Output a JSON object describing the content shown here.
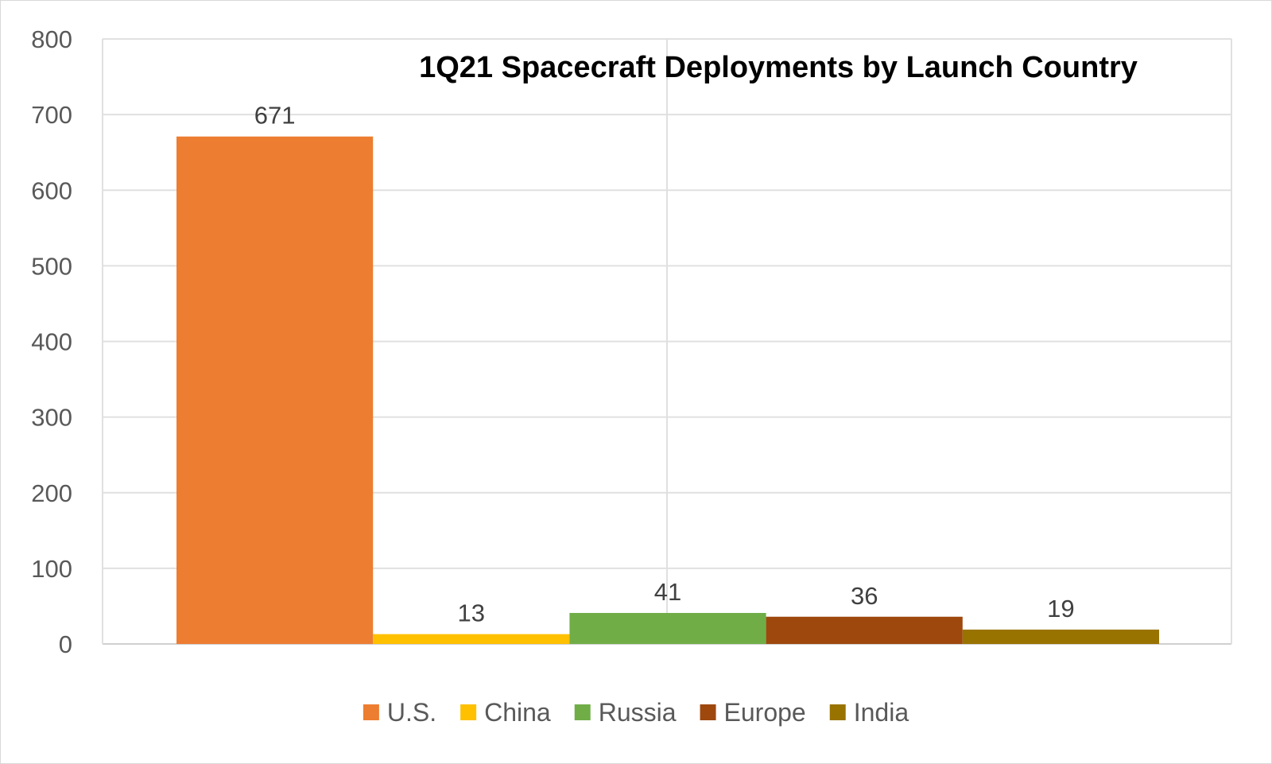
{
  "chart_data": {
    "type": "bar",
    "title": "1Q21 Spacecraft Deployments by Launch Country",
    "xlabel": "",
    "ylabel": "",
    "ylim": [
      0,
      800
    ],
    "yticks": [
      0,
      100,
      200,
      300,
      400,
      500,
      600,
      700,
      800
    ],
    "yticks_text": [
      "0",
      "100",
      "200",
      "300",
      "400",
      "500",
      "600",
      "700",
      "800"
    ],
    "grid": true,
    "legend_position": "bottom",
    "series": [
      {
        "name": "U.S.",
        "value": 671,
        "label": "671",
        "color": "#ED7D31"
      },
      {
        "name": "China",
        "value": 13,
        "label": "13",
        "color": "#FFC000"
      },
      {
        "name": "Russia",
        "value": 41,
        "label": "41",
        "color": "#70AD47"
      },
      {
        "name": "Europe",
        "value": 36,
        "label": "36",
        "color": "#9E480E"
      },
      {
        "name": "India",
        "value": 19,
        "label": "19",
        "color": "#997300"
      }
    ]
  }
}
